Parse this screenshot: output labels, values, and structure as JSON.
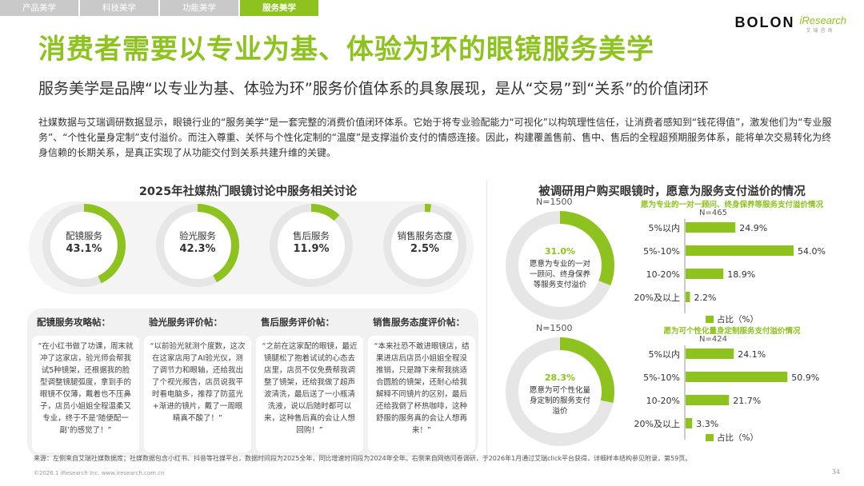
{
  "tabs": [
    "产品美学",
    "科技美学",
    "功能美学",
    "服务美学"
  ],
  "active_tab": 3,
  "logo": {
    "brand": "BOLON",
    "partner": "iResearch",
    "partner_sub": "艾瑞咨询"
  },
  "title": "消费者需要以专业为基、体验为环的眼镜服务美学",
  "subtitle": "服务美学是品牌“以专业为基、体验为环”服务价值体系的具象展现，是从“交易”到“关系”的价值闭环",
  "intro": "社媒数据与艾瑞调研数据显示，眼镜行业的“服务美学”是一套完整的消费价值闭环体系。它始于将专业验配能力“可视化”以构筑理性信任，让消费者感知到“钱花得值”，激发他们为“专业服务”、“个性化量身定制”支付溢价。而注入尊重、关怀与个性化定制的“温度”是支撑溢价支付的情感连接。因此，构建覆盖售前、售中、售后的全程超预期服务体系，能将单次交易转化为终身信赖的长期关系，是真正实现了从功能交付到关系共建升维的关键。",
  "left_title": "2025年社媒热门眼镜讨论中服务相关讨论",
  "donuts": [
    {
      "label": "配镜服务",
      "value_text": "43.1%",
      "value": 43.1
    },
    {
      "label": "验光服务",
      "value_text": "42.3%",
      "value": 42.3
    },
    {
      "label": "售后服务",
      "value_text": "11.9%",
      "value": 11.9
    },
    {
      "label": "销售服务态度",
      "value_text": "2.5%",
      "value": 2.5
    }
  ],
  "cards": [
    {
      "title": "配镜服务攻略帖：",
      "body": "“在小红书做了功课，周末就冲了这家店，验光师会帮我试5种镜架，还根据我的脸型调整镜腿弧度，拿到手的眼镜不仅薄，戴着也不压鼻子，店员小姐姐全程温柔又专业，终于不是‘随便配一副’的感觉了！”"
    },
    {
      "title": "验光服务评价帖：",
      "body": "“以前验光就测个度数，这次在这家店用了AI验光仪，测了调节力和眼轴，还给我出了个视光报告，店员说我平时看电脑多，推荐了防蓝光+渐进的镜片，戴了一周眼睛真不酸了！”"
    },
    {
      "title": "售后服务评价帖：",
      "body": "“之前在这家配的眼镜，最近镜腿松了抱着试试的心态去店里，店员不仅免费帮我调整了镜架，还给我做了超声波清洗，最后送了一小瓶清洗液，说以后随时都可以来，这种售后真的会让人想回购！”"
    },
    {
      "title": "销售服务态度评价帖：",
      "body": "“本来社恐不敢进眼镜店，结果进店后店员小姐姐全程没推销，只是蹲下来帮我挑适合圆脸的镜架，还耐心给我解释不同镜片的区别，最后还给我倒了杯热咖啡，这种舒服的服务真的会让人想再来！”"
    }
  ],
  "right_title": "被调研用户购买眼镜时，愿意为服务支付溢价的情况",
  "chart_data": [
    {
      "type": "pie",
      "n_label": "N=1500",
      "value": 31.0,
      "value_text": "31.0%",
      "label": "愿意为专业的一对一顾问、终身保养等服务支付溢价"
    },
    {
      "type": "bar",
      "title": "愿为专业的一对一顾问、终身保养等服务支付溢价情况",
      "n_label": "N=465",
      "categories": [
        "5%以内",
        "5%-10%",
        "10-20%",
        "20%及以上"
      ],
      "values": [
        24.9,
        54.0,
        18.9,
        2.2
      ],
      "value_labels": [
        "24.9%",
        "54.0%",
        "18.9%",
        "2.2%"
      ],
      "legend": "占比（%）",
      "color": "#8dc21f"
    },
    {
      "type": "pie",
      "n_label": "N=1500",
      "value": 28.3,
      "value_text": "28.3%",
      "label": "愿意为可个性化量身定制的服务支付溢价"
    },
    {
      "type": "bar",
      "title": "愿为可个性化量身定制服务支付溢价情况",
      "n_label": "N=424",
      "categories": [
        "5%以内",
        "5%-10%",
        "10-20%",
        "20%及以上"
      ],
      "values": [
        24.1,
        50.9,
        21.7,
        3.3
      ],
      "value_labels": [
        "24.1%",
        "50.9%",
        "21.7%",
        "3.3%"
      ],
      "legend": "占比（%）",
      "color": "#8dc21f"
    }
  ],
  "footnote": "来源：左侧来自艾瑞社媒数据库；社媒数据包含小红书、抖音等社媒平台，数据时间段为2025全年，同比增速时间段为2024年全年。右侧来自网络问卷调研，于2026年1月通过艾瑞click平台获得，详细样本结构参见附录，第59页。",
  "copyright": "©2026.1 iResearch Inc. www.iresearch.com.cn",
  "page_number": "34",
  "colors": {
    "accent": "#8dc21f",
    "track": "#e6e6e6"
  }
}
